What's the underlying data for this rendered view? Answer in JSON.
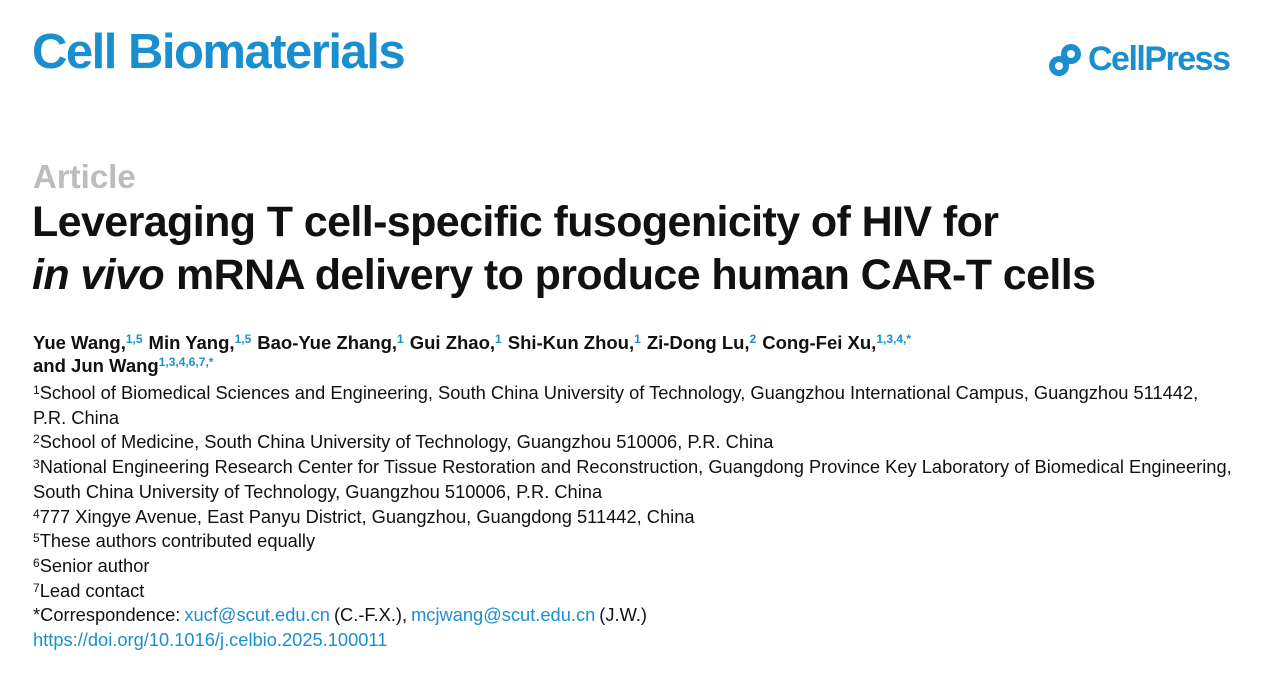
{
  "journal": "Cell Biomaterials",
  "publisher": "CellPress",
  "article_type": "Article",
  "title": {
    "line1": "Leveraging T cell-specific fusogenicity of HIV for",
    "line2_italic": "in vivo",
    "line2_rest": "mRNA delivery to produce human CAR-T cells"
  },
  "authors": [
    {
      "name": "Yue Wang,",
      "affil": "1,5"
    },
    {
      "name": "Min Yang,",
      "affil": "1,5"
    },
    {
      "name": "Bao-Yue Zhang,",
      "affil": "1"
    },
    {
      "name": "Gui Zhao,",
      "affil": "1"
    },
    {
      "name": "Shi-Kun Zhou,",
      "affil": "1"
    },
    {
      "name": "Zi-Dong Lu,",
      "affil": "2"
    },
    {
      "name": "Cong-Fei Xu,",
      "affil": "1,3,4,*"
    },
    {
      "name": "and Jun Wang",
      "affil": "1,3,4,6,7,*"
    }
  ],
  "affiliations": [
    {
      "num": "1",
      "text": "School of Biomedical Sciences and Engineering, South China University of Technology, Guangzhou International Campus, Guangzhou 511442, P.R. China"
    },
    {
      "num": "2",
      "text": "School of Medicine, South China University of Technology, Guangzhou 510006, P.R. China"
    },
    {
      "num": "3",
      "text": "National Engineering Research Center for Tissue Restoration and Reconstruction, Guangdong Province Key Laboratory of Biomedical Engineering, South China University of Technology, Guangzhou 510006, P.R. China"
    },
    {
      "num": "4",
      "text": "777 Xingye Avenue, East Panyu District, Guangzhou, Guangdong 511442, China"
    },
    {
      "num": "5",
      "text": "These authors contributed equally"
    },
    {
      "num": "6",
      "text": "Senior author"
    },
    {
      "num": "7",
      "text": "Lead contact"
    }
  ],
  "correspondence": {
    "label": "*Correspondence:",
    "email1": "xucf@scut.edu.cn",
    "name1": "(C.-F.X.),",
    "email2": "mcjwang@scut.edu.cn",
    "name2": "(J.W.)"
  },
  "doi": "https://doi.org/10.1016/j.celbio.2025.100011"
}
